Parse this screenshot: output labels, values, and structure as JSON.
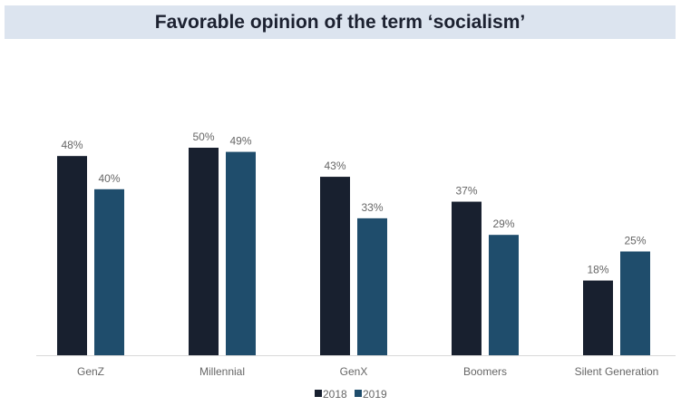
{
  "chart_data": {
    "type": "bar",
    "title": "Favorable opinion of the term ‘socialism’",
    "categories": [
      "GenZ",
      "Millennial",
      "GenX",
      "Boomers",
      "Silent Generation"
    ],
    "series": [
      {
        "name": "2018",
        "values": [
          48,
          50,
          43,
          37,
          18
        ],
        "color": "#18202f"
      },
      {
        "name": "2019",
        "values": [
          40,
          49,
          33,
          29,
          25
        ],
        "color": "#1f4d6c"
      }
    ],
    "value_suffix": "%",
    "xlabel": "",
    "ylabel": "",
    "ylim": [
      0,
      55
    ],
    "grid": false,
    "legend": "bottom-center"
  }
}
